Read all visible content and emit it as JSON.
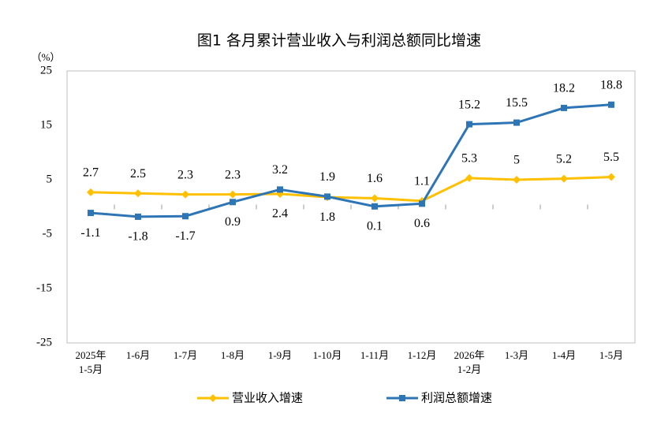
{
  "chart_data": {
    "type": "line",
    "title": "图1  各月累计营业收入与利润总额同比增速",
    "y_unit": "（%）",
    "categories": [
      "2025年\n1-5月",
      "1-6月",
      "1-7月",
      "1-8月",
      "1-9月",
      "1-10月",
      "1-11月",
      "1-12月",
      "2026年\n1-2月",
      "1-3月",
      "1-4月",
      "1-5月"
    ],
    "series": [
      {
        "name": "营业收入增速",
        "color": "#FFC000",
        "marker": "diamond",
        "values": [
          2.7,
          2.5,
          2.3,
          2.3,
          2.4,
          1.8,
          1.6,
          1.1,
          5.3,
          5.0,
          5.2,
          5.5
        ]
      },
      {
        "name": "利润总额增速",
        "color": "#2E75B6",
        "marker": "square",
        "values": [
          -1.1,
          -1.8,
          -1.7,
          0.9,
          3.2,
          1.9,
          0.1,
          0.6,
          15.2,
          15.5,
          18.2,
          18.8
        ]
      }
    ],
    "ylim": [
      -25,
      25
    ],
    "yticks": [
      -25,
      -15,
      -5,
      5,
      15,
      25
    ]
  }
}
